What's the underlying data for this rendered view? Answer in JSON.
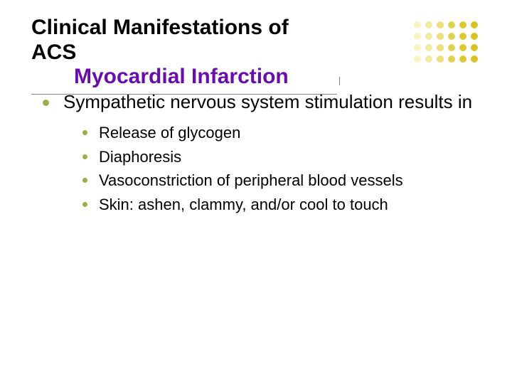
{
  "title": {
    "line1": "Clinical Manifestations of ACS",
    "line2": "Myocardial Infarction",
    "line2_color": "#6a0dad"
  },
  "decoration": {
    "dot_colors": [
      "#faf5c8",
      "#f2ea9f",
      "#ece07a",
      "#e2d24e",
      "#dbc832",
      "#d8c427",
      "#faf5c8",
      "#f2ea9f",
      "#ece07a",
      "#e2d24e",
      "#dbc832",
      "#d8c427",
      "#faf5c8",
      "#f2ea9f",
      "#ece07a",
      "#e2d24e",
      "#dbc832",
      "#d8c427",
      "#faf5c8",
      "#f2ea9f",
      "#ece07a",
      "#e2d24e",
      "#dbc832",
      "#d8c427"
    ]
  },
  "bullets": {
    "level1_bullet_color": "#97b148",
    "level2_bullet_color": "#97b148",
    "level1": {
      "text": "Sympathetic nervous system stimulation results in",
      "items": [
        "Release of glycogen",
        "Diaphoresis",
        "Vasoconstriction of peripheral blood vessels",
        "Skin: ashen, clammy, and/or cool to touch"
      ]
    }
  }
}
